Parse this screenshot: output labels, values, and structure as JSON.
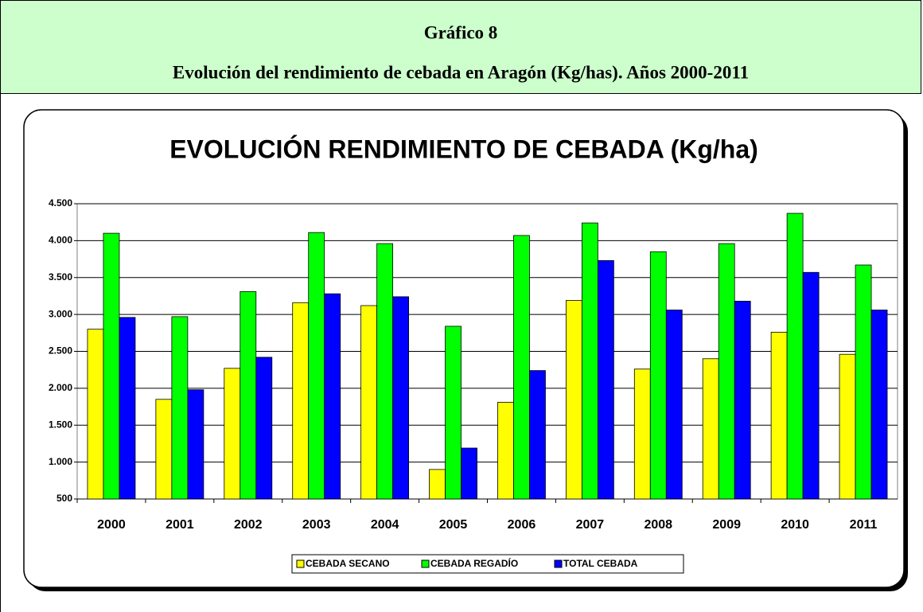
{
  "header": {
    "title": "Gráfico 8",
    "subtitle": "Evolución del rendimiento de cebada en Aragón  (Kg/has). Años 2000-2011"
  },
  "chart_data": {
    "type": "bar",
    "title": "EVOLUCIÓN RENDIMIENTO DE CEBADA (Kg/ha)",
    "categories": [
      "2000",
      "2001",
      "2002",
      "2003",
      "2004",
      "2005",
      "2006",
      "2007",
      "2008",
      "2009",
      "2010",
      "2011"
    ],
    "series": [
      {
        "name": "CEBADA SECANO",
        "color": "#ffff00",
        "values": [
          2800,
          1850,
          2270,
          3160,
          3120,
          900,
          1810,
          3190,
          2260,
          2400,
          2760,
          2460
        ]
      },
      {
        "name": "CEBADA REGADÍO",
        "color": "#00ff00",
        "values": [
          4100,
          2970,
          3310,
          4110,
          3960,
          2840,
          4070,
          4240,
          3850,
          3960,
          4370,
          3670
        ]
      },
      {
        "name": "TOTAL CEBADA",
        "color": "#0000ff",
        "values": [
          2960,
          1980,
          2420,
          3280,
          3240,
          1190,
          2240,
          3730,
          3060,
          3180,
          3570,
          3060
        ]
      }
    ],
    "ylim": [
      500,
      4500
    ],
    "yticks": [
      500,
      {
        "value": 1000,
        "label": "1.000"
      },
      {
        "value": 1500,
        "label": "1.500"
      },
      {
        "value": 2000,
        "label": "2.000"
      },
      {
        "value": 2500,
        "label": "2.500"
      },
      {
        "value": 3000,
        "label": "3.000"
      },
      {
        "value": 3500,
        "label": "3.500"
      },
      {
        "value": 4000,
        "label": "4.000"
      },
      {
        "value": 4500,
        "label": "4.500"
      }
    ],
    "grid": true,
    "legend": "bottom"
  }
}
